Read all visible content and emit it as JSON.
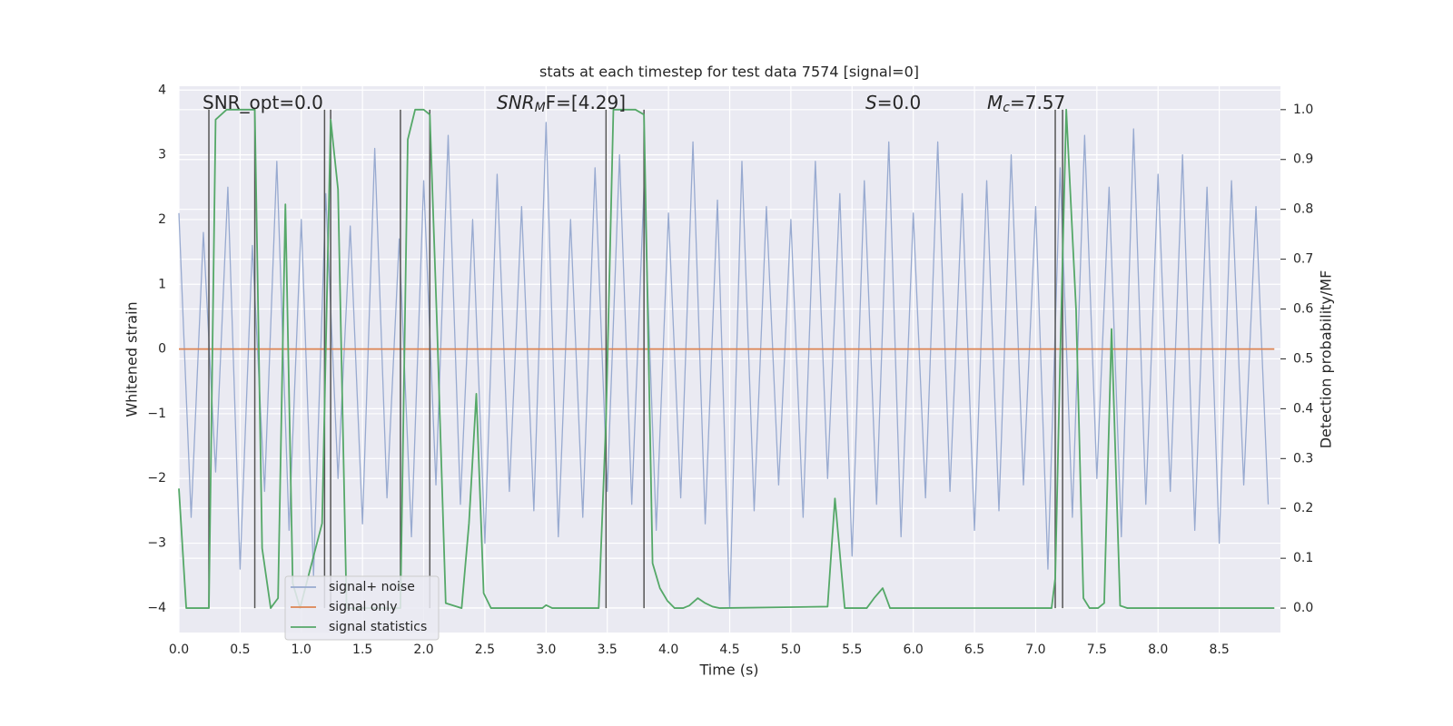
{
  "chart_data": {
    "type": "line",
    "title": "stats at each timestep for test data 7574 [signal=0]",
    "xlabel": "Time (s)",
    "ylabel": "Whitened strain",
    "y2label": "Detection probability/MF",
    "xlim": [
      0,
      9
    ],
    "ylim": [
      -4.38,
      4.06
    ],
    "y2lim": [
      -0.049,
      1.047
    ],
    "xticks": [
      {
        "value": 0,
        "label": "0.0"
      },
      0.5,
      {
        "value": 1,
        "label": "1.0"
      },
      1.5,
      {
        "value": 2,
        "label": "2.0"
      },
      2.5,
      {
        "value": 3,
        "label": "3.0"
      },
      3.5,
      {
        "value": 4,
        "label": "4.0"
      },
      4.5,
      {
        "value": 5,
        "label": "5.0"
      },
      5.5,
      {
        "value": 6,
        "label": "6.0"
      },
      6.5,
      {
        "value": 7,
        "label": "7.0"
      },
      7.5,
      {
        "value": 8,
        "label": "8.0"
      },
      8.5
    ],
    "yticks": [
      {
        "value": -4,
        "label": "−4"
      },
      {
        "value": -3,
        "label": "−3"
      },
      {
        "value": -2,
        "label": "−2"
      },
      {
        "value": -1,
        "label": "−1"
      },
      0,
      1,
      2,
      3,
      4
    ],
    "y2ticks": [
      {
        "value": 0,
        "label": "0.0"
      },
      0.1,
      0.2,
      0.3,
      0.4,
      0.5,
      0.6,
      0.7,
      0.8,
      0.9,
      {
        "value": 1,
        "label": "1.0"
      }
    ],
    "grid": true,
    "legend_loc": "best",
    "series": [
      {
        "name": "signal+ noise",
        "color": "#98aad0",
        "x": [
          0.0,
          0.1,
          0.2,
          0.3,
          0.4,
          0.5,
          0.6,
          0.7,
          0.8,
          0.9,
          1.0,
          1.1,
          1.2,
          1.3,
          1.4,
          1.5,
          1.6,
          1.7,
          1.8,
          1.9,
          2.0,
          2.1,
          2.2,
          2.3,
          2.4,
          2.5,
          2.6,
          2.7,
          2.8,
          2.9,
          3.0,
          3.1,
          3.2,
          3.3,
          3.4,
          3.5,
          3.6,
          3.7,
          3.8,
          3.9,
          4.0,
          4.1,
          4.2,
          4.3,
          4.4,
          4.5,
          4.6,
          4.7,
          4.8,
          4.9,
          5.0,
          5.1,
          5.2,
          5.3,
          5.4,
          5.5,
          5.6,
          5.7,
          5.8,
          5.9,
          6.0,
          6.1,
          6.2,
          6.3,
          6.4,
          6.5,
          6.6,
          6.7,
          6.8,
          6.9,
          7.0,
          7.1,
          7.2,
          7.3,
          7.4,
          7.5,
          7.6,
          7.7,
          7.8,
          7.9,
          8.0,
          8.1,
          8.2,
          8.3,
          8.4,
          8.5,
          8.6,
          8.7,
          8.8,
          8.9
        ],
        "values": [
          2.1,
          -2.6,
          1.8,
          -1.9,
          2.5,
          -3.4,
          1.6,
          -2.2,
          2.9,
          -2.8,
          2.0,
          -3.5,
          2.4,
          -2.0,
          1.9,
          -2.7,
          3.1,
          -2.3,
          1.7,
          -2.9,
          2.6,
          -2.1,
          3.3,
          -2.4,
          2.0,
          -3.0,
          2.7,
          -2.2,
          2.2,
          -2.5,
          3.5,
          -2.9,
          2.0,
          -2.6,
          2.8,
          -2.2,
          3.0,
          -2.4,
          2.5,
          -2.8,
          2.1,
          -2.3,
          3.2,
          -2.7,
          2.3,
          -4.0,
          2.9,
          -2.5,
          2.2,
          -2.1,
          2.0,
          -2.6,
          2.9,
          -2.0,
          2.4,
          -3.2,
          2.6,
          -2.4,
          3.2,
          -2.9,
          2.1,
          -2.3,
          3.2,
          -2.2,
          2.4,
          -2.8,
          2.6,
          -2.5,
          3.0,
          -2.1,
          2.2,
          -3.4,
          2.8,
          -2.6,
          3.3,
          -2.0,
          2.5,
          -2.9,
          3.4,
          -2.4,
          2.7,
          -2.2,
          3.0,
          -2.8,
          2.5,
          -3.0,
          2.6,
          -2.1,
          2.2,
          -2.4
        ]
      },
      {
        "name": "signal only",
        "color": "#dd8452",
        "x": [
          0,
          8.95
        ],
        "values": [
          0,
          0
        ]
      },
      {
        "name": "signal statistics",
        "color": "#55a868",
        "axis": "y2",
        "x": [
          0,
          0.06,
          0.245,
          0.3,
          0.39,
          0.62,
          0.68,
          0.75,
          0.81,
          0.87,
          0.93,
          0.99,
          1.17,
          1.24,
          1.3,
          1.37,
          1.81,
          1.87,
          1.93,
          2.0,
          2.05,
          2.11,
          2.18,
          2.31,
          2.37,
          2.43,
          2.49,
          2.55,
          2.97,
          3.0,
          3.05,
          3.43,
          3.49,
          3.55,
          3.6,
          3.73,
          3.8,
          3.87,
          3.93,
          3.99,
          4.05,
          4.12,
          4.17,
          4.24,
          4.3,
          4.36,
          4.42,
          5.3,
          5.36,
          5.44,
          5.62,
          5.68,
          5.75,
          5.81,
          7.13,
          7.16,
          7.2,
          7.25,
          7.33,
          7.39,
          7.44,
          7.51,
          7.56,
          7.62,
          7.69,
          7.75,
          8.95
        ],
        "values": [
          0.24,
          0,
          0,
          0.98,
          1.0,
          1.0,
          0.12,
          0,
          0.02,
          0.81,
          0.05,
          0,
          0.17,
          0.98,
          0.84,
          0,
          0,
          0.94,
          1.0,
          1.0,
          0.99,
          0.56,
          0.01,
          0,
          0.17,
          0.43,
          0.03,
          0,
          0,
          0.006,
          0,
          0,
          0.38,
          1.0,
          1.0,
          1.0,
          0.99,
          0.09,
          0.04,
          0.015,
          0,
          0,
          0.005,
          0.02,
          0.01,
          0.003,
          0,
          0.003,
          0.22,
          0,
          0,
          0.02,
          0.04,
          0,
          0,
          0.06,
          0.5,
          1.0,
          0.6,
          0.02,
          0,
          0,
          0.01,
          0.56,
          0.005,
          0,
          0
        ]
      }
    ],
    "vlines": {
      "color": "#555555",
      "x": [
        0.245,
        0.62,
        1.19,
        1.24,
        1.81,
        2.05,
        3.49,
        3.8,
        7.16,
        7.22
      ]
    },
    "annotations": [
      {
        "text": "SNR_opt=0.0",
        "italic": false
      },
      {
        "text": "SNR",
        "sub": "M",
        "after": "F=[4.29]",
        "italic": true
      },
      {
        "text": "S",
        "after": "=0.0",
        "italic": true
      },
      {
        "text": "M",
        "sub": "c",
        "after": "=7.57",
        "italic": true
      }
    ]
  }
}
